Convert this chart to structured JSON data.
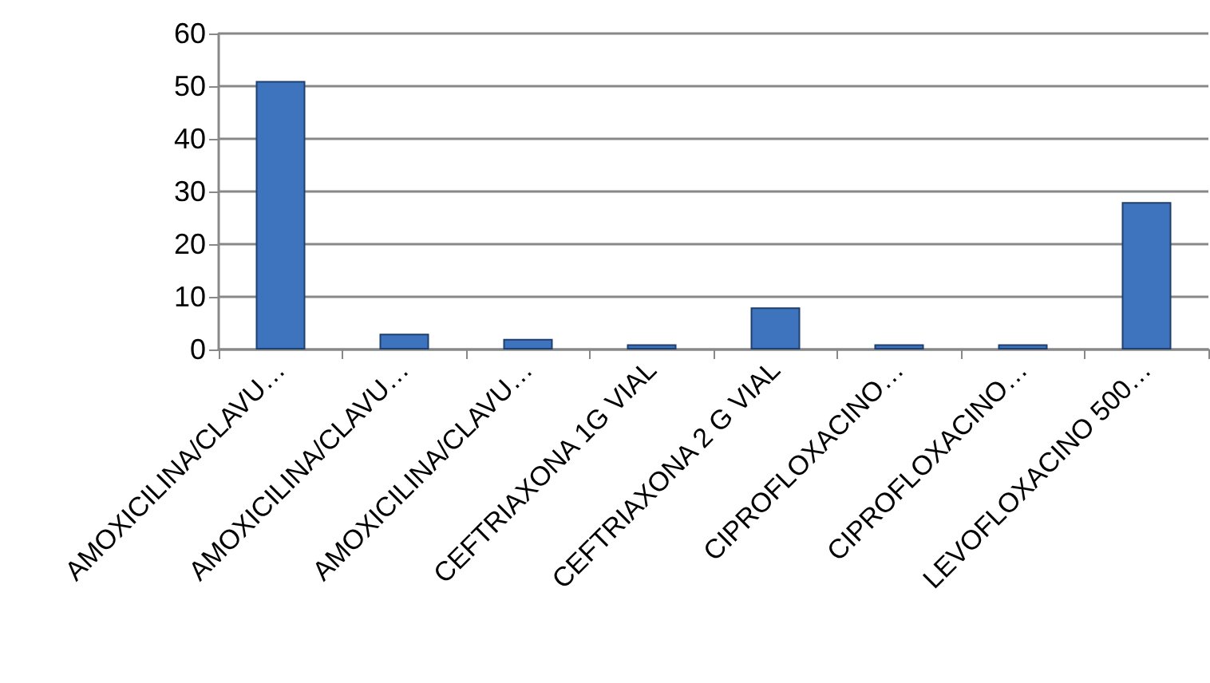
{
  "chart_data": {
    "type": "bar",
    "categories": [
      "AMOXICILINA/CLAVU…",
      "AMOXICILINA/CLAVU…",
      "AMOXICILINA/CLAVU…",
      "CEFTRIAXONA 1G VIAL",
      "CEFTRIAXONA 2 G VIAL",
      "CIPROFLOXACINO…",
      "CIPROFLOXACINO…",
      "LEVOFLOXACINO 500…"
    ],
    "values": [
      51,
      3,
      2,
      1,
      8,
      1,
      1,
      28
    ],
    "color": "#3d74bd",
    "ylim": [
      0,
      60
    ],
    "yticks": [
      0,
      10,
      20,
      30,
      40,
      50,
      60
    ],
    "grid": "y"
  }
}
